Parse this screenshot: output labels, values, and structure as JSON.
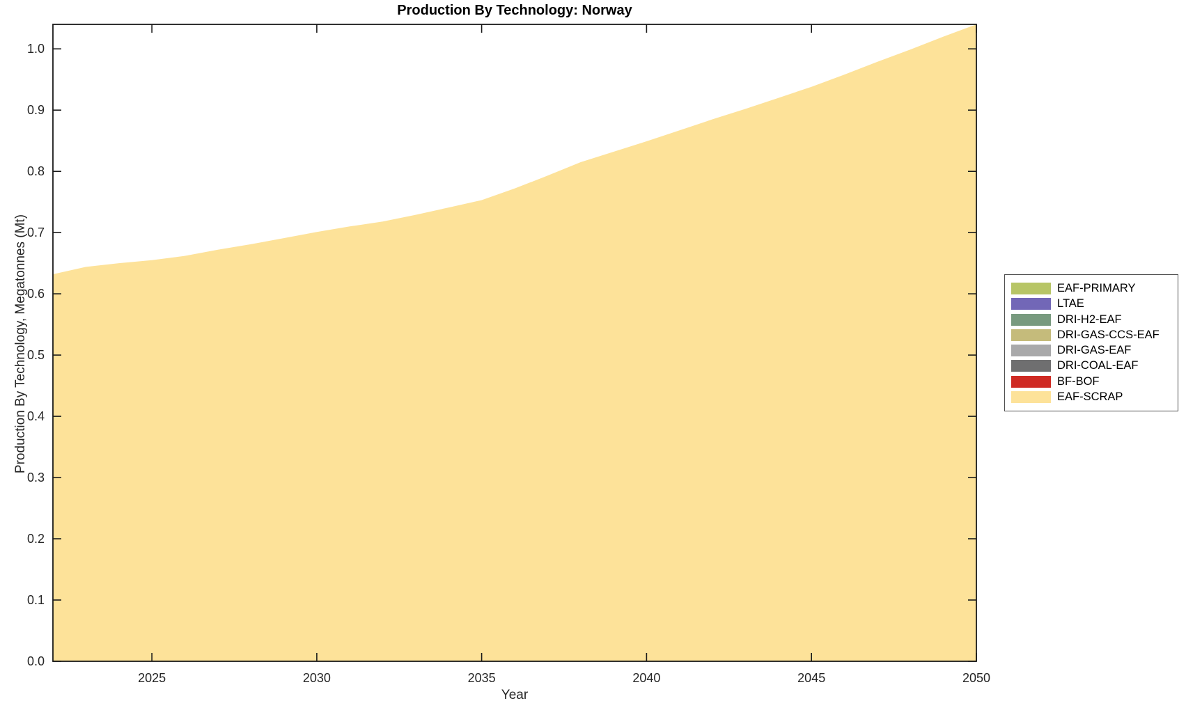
{
  "figure": {
    "title": "Production By Technology: Norway",
    "xlabel": "Year",
    "ylabel": "Production By Technology, Megatonnes (Mt)"
  },
  "chart_data": {
    "type": "area",
    "stacked": true,
    "title": "Production By Technology: Norway",
    "xlabel": "Year",
    "ylabel": "Production By Technology, Megatonnes (Mt)",
    "x": [
      2022,
      2023,
      2024,
      2025,
      2026,
      2027,
      2028,
      2029,
      2030,
      2031,
      2032,
      2033,
      2034,
      2035,
      2036,
      2037,
      2038,
      2039,
      2040,
      2041,
      2042,
      2043,
      2044,
      2045,
      2046,
      2047,
      2048,
      2049,
      2050
    ],
    "series": [
      {
        "name": "EAF-PRIMARY",
        "color": "#b7c566",
        "values": [
          0,
          0,
          0,
          0,
          0,
          0,
          0,
          0,
          0,
          0,
          0,
          0,
          0,
          0,
          0,
          0,
          0,
          0,
          0,
          0,
          0,
          0,
          0,
          0,
          0,
          0,
          0,
          0,
          0
        ]
      },
      {
        "name": "LTAE",
        "color": "#7267b7",
        "values": [
          0,
          0,
          0,
          0,
          0,
          0,
          0,
          0,
          0,
          0,
          0,
          0,
          0,
          0,
          0,
          0,
          0,
          0,
          0,
          0,
          0,
          0,
          0,
          0,
          0,
          0,
          0,
          0,
          0
        ]
      },
      {
        "name": "DRI-H2-EAF",
        "color": "#789a7f",
        "values": [
          0,
          0,
          0,
          0,
          0,
          0,
          0,
          0,
          0,
          0,
          0,
          0,
          0,
          0,
          0,
          0,
          0,
          0,
          0,
          0,
          0,
          0,
          0,
          0,
          0,
          0,
          0,
          0,
          0
        ]
      },
      {
        "name": "DRI-GAS-CCS-EAF",
        "color": "#c5bb7b",
        "values": [
          0,
          0,
          0,
          0,
          0,
          0,
          0,
          0,
          0,
          0,
          0,
          0,
          0,
          0,
          0,
          0,
          0,
          0,
          0,
          0,
          0,
          0,
          0,
          0,
          0,
          0,
          0,
          0,
          0
        ]
      },
      {
        "name": "DRI-GAS-EAF",
        "color": "#a9a9aa",
        "values": [
          0,
          0,
          0,
          0,
          0,
          0,
          0,
          0,
          0,
          0,
          0,
          0,
          0,
          0,
          0,
          0,
          0,
          0,
          0,
          0,
          0,
          0,
          0,
          0,
          0,
          0,
          0,
          0,
          0
        ]
      },
      {
        "name": "DRI-COAL-EAF",
        "color": "#6f6f70",
        "values": [
          0,
          0,
          0,
          0,
          0,
          0,
          0,
          0,
          0,
          0,
          0,
          0,
          0,
          0,
          0,
          0,
          0,
          0,
          0,
          0,
          0,
          0,
          0,
          0,
          0,
          0,
          0,
          0,
          0
        ]
      },
      {
        "name": "BF-BOF",
        "color": "#cf2a23",
        "values": [
          0,
          0,
          0,
          0,
          0,
          0,
          0,
          0,
          0,
          0,
          0,
          0,
          0,
          0,
          0,
          0,
          0,
          0,
          0,
          0,
          0,
          0,
          0,
          0,
          0,
          0,
          0,
          0,
          0
        ]
      },
      {
        "name": "EAF-SCRAP",
        "color": "#fde299",
        "values": [
          0.632,
          0.644,
          0.65,
          0.655,
          0.662,
          0.672,
          0.681,
          0.691,
          0.701,
          0.71,
          0.718,
          0.729,
          0.741,
          0.753,
          0.772,
          0.793,
          0.815,
          0.832,
          0.849,
          0.867,
          0.885,
          0.902,
          0.92,
          0.938,
          0.958,
          0.979,
          0.999,
          1.02,
          1.04
        ]
      }
    ],
    "xlim": [
      2022,
      2050
    ],
    "ylim": [
      0,
      1.04
    ],
    "xticks": [
      2025,
      2030,
      2035,
      2040,
      2045,
      2050
    ],
    "yticks": [
      0.0,
      0.1,
      0.2,
      0.3,
      0.4,
      0.5,
      0.6,
      0.7,
      0.8,
      0.9,
      1.0
    ],
    "grid": false,
    "legend_position": "outside-right",
    "legend_order": [
      "EAF-PRIMARY",
      "LTAE",
      "DRI-H2-EAF",
      "DRI-GAS-CCS-EAF",
      "DRI-GAS-EAF",
      "DRI-COAL-EAF",
      "BF-BOF",
      "EAF-SCRAP"
    ],
    "axis_color": "#1a1a1a",
    "tick_label_color": "#262626"
  }
}
